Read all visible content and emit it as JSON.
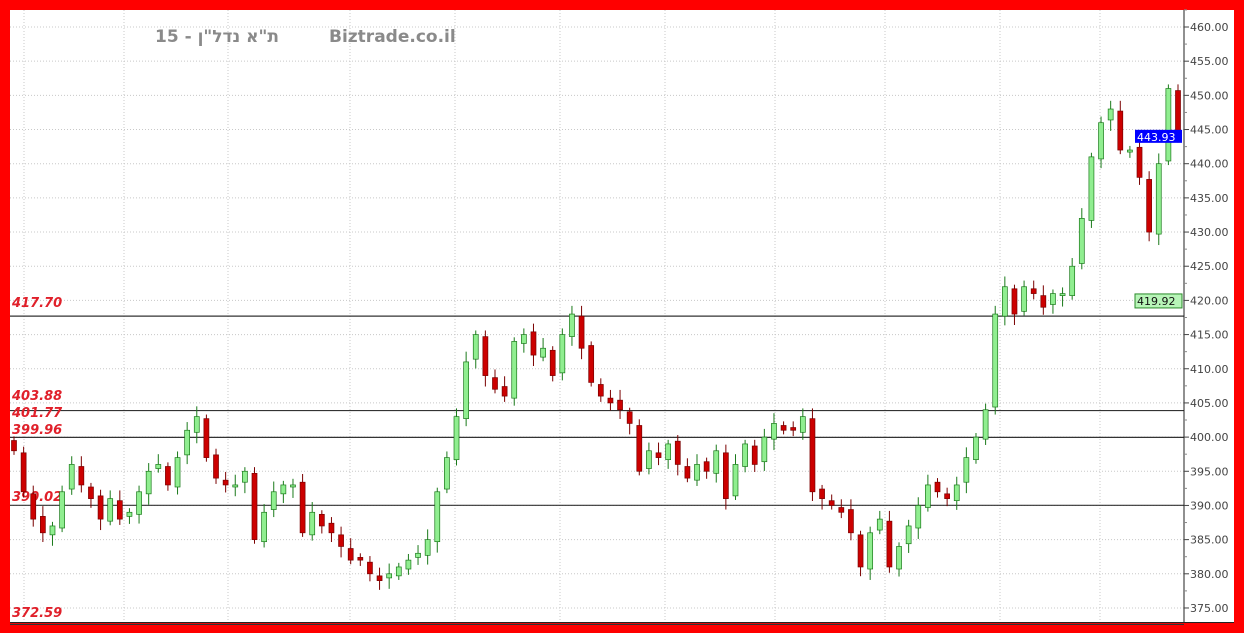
{
  "chart_data": {
    "type": "candlestick",
    "title": "ת\"א נדל\"ן - 15",
    "watermark": "Biztrade.co.il",
    "ylim": [
      372,
      461
    ],
    "yticks": [
      375,
      380,
      385,
      390,
      395,
      400,
      405,
      410,
      415,
      420,
      425,
      430,
      435,
      440,
      445,
      450,
      455,
      460
    ],
    "ytick_labels": [
      "375.00",
      "380.00",
      "385.00",
      "390.00",
      "395.00",
      "400.00",
      "405.00",
      "410.00",
      "415.00",
      "420.00",
      "425.00",
      "430.00",
      "435.00",
      "440.00",
      "445.00",
      "450.00",
      "455.00",
      "460.00"
    ],
    "grid": true,
    "last_price": {
      "value": 443.93,
      "label": "443.93",
      "color": "#0000ff"
    },
    "marker_price": {
      "value": 419.92,
      "label": "419.92",
      "color": "#b8f5b8"
    },
    "levels": [
      {
        "value": 417.7,
        "label": "417.70",
        "line": true
      },
      {
        "value": 403.88,
        "label": "403.88",
        "line": true
      },
      {
        "value": 401.77,
        "label": "401.77",
        "line": false
      },
      {
        "value": 399.96,
        "label": "399.96",
        "line": true
      },
      {
        "value": 390.02,
        "label": "390.02",
        "line": true
      },
      {
        "value": 372.59,
        "label": "372.59",
        "line": true
      }
    ],
    "colors": {
      "up": "#90ee90",
      "up_border": "#1a7a1a",
      "down": "#cc0000",
      "down_border": "#7a0000",
      "frame": "#ff0000"
    },
    "closes": [
      398,
      392,
      388,
      386,
      387,
      392,
      396,
      393,
      391,
      388,
      391,
      388,
      389,
      392,
      395,
      396,
      393,
      397,
      401,
      403,
      397,
      394,
      393,
      393,
      395,
      385,
      389,
      392,
      393,
      393,
      386,
      389,
      387,
      386,
      384,
      382,
      382,
      380,
      379,
      380,
      381,
      382,
      383,
      385,
      392,
      397,
      403,
      411,
      415,
      409,
      407,
      406,
      414,
      415,
      412,
      413,
      409,
      415,
      418,
      413,
      408,
      406,
      405,
      404,
      402,
      395,
      398,
      397,
      399,
      396,
      394,
      396,
      395,
      398,
      391,
      396,
      399,
      396,
      400,
      402,
      401,
      401,
      403,
      392,
      391,
      390,
      389,
      386,
      381,
      386,
      388,
      381,
      384,
      387,
      390,
      393,
      392,
      391,
      393,
      397,
      400,
      404,
      418,
      422,
      418,
      422,
      421,
      419,
      421,
      421,
      425,
      432,
      441,
      446,
      448,
      442,
      442,
      438,
      430,
      440,
      451,
      443.93
    ]
  }
}
